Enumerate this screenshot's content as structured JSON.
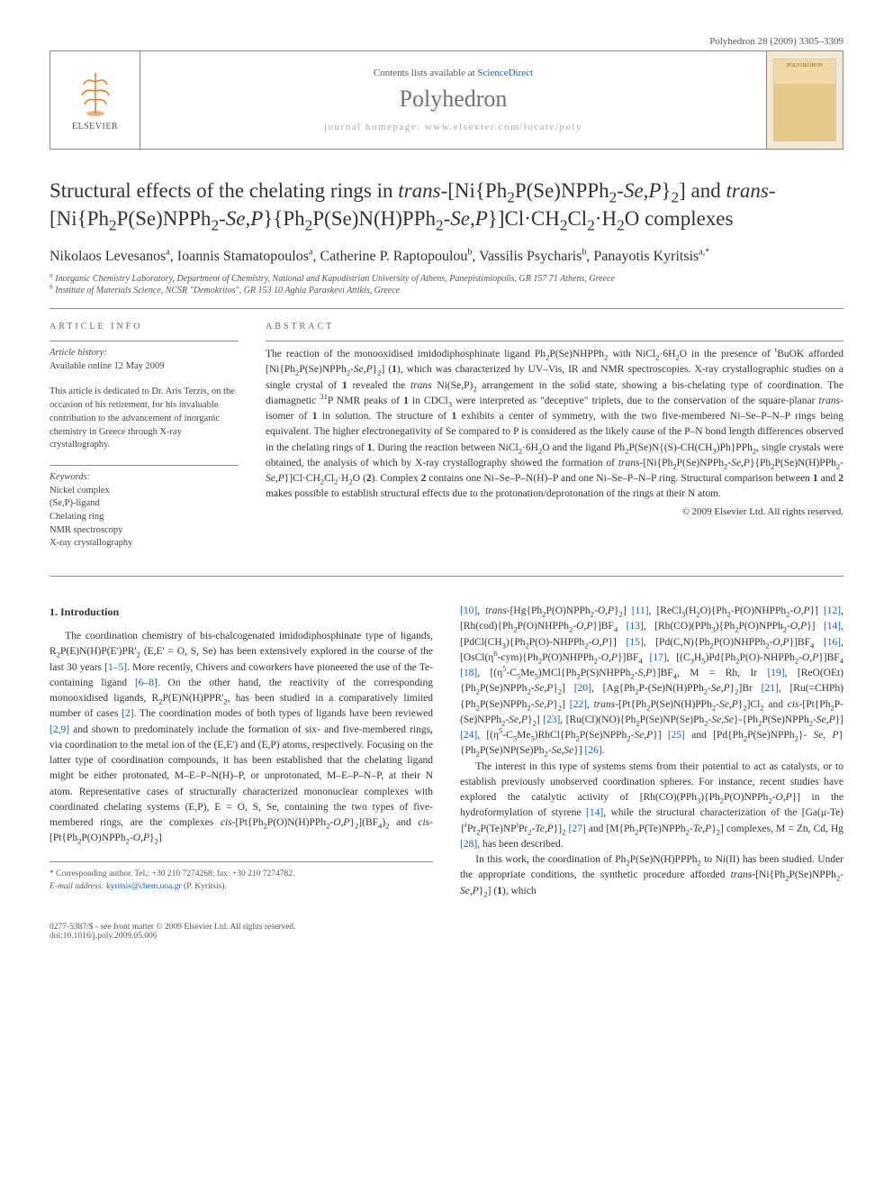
{
  "header": {
    "journal_ref": "Polyhedron 28 (2009) 3305–3309",
    "contents_prefix": "Contents lists available at ",
    "contents_link": "ScienceDirect",
    "journal_name": "Polyhedron",
    "homepage_prefix": "journal homepage: ",
    "homepage_url": "www.elsevier.com/locate/poly",
    "elsevier_label": "ELSEVIER"
  },
  "title_html": "Structural effects of the chelating rings in <em>trans</em>-[Ni{Ph<sub>2</sub>P(Se)NPPh<sub>2</sub>-<em>Se,P</em>}<sub>2</sub>] and <em>trans</em>-[Ni{Ph<sub>2</sub>P(Se)NPPh<sub>2</sub>-<em>Se,P</em>}{Ph<sub>2</sub>P(Se)N(H)PPh<sub>2</sub>-<em>Se,P</em>}]Cl·CH<sub>2</sub>Cl<sub>2</sub>·H<sub>2</sub>O complexes",
  "authors_html": "Nikolaos Levesanos<sup>a</sup>, Ioannis Stamatopoulos<sup>a</sup>, Catherine P. Raptopoulou<sup>b</sup>, Vassilis Psycharis<sup>b</sup>, Panayotis Kyritsis<sup>a,*</sup>",
  "affiliations": {
    "a": "Inorganic Chemistry Laboratory, Department of Chemistry, National and Kapodistrian University of Athens, Panepistimiopolis, GR 157 71 Athens, Greece",
    "b": "Institute of Materials Science, NCSR \"Demokritos\", GR 153 10 Aghia Paraskevi Attikis, Greece"
  },
  "article_info": {
    "heading": "ARTICLE INFO",
    "history_label": "Article history:",
    "history_line": "Available online 12 May 2009",
    "dedication": "This article is dedicated to Dr. Aris Terzis, on the occasion of his retirement, for his invaluable contribution to the advancement of inorganic chemistry in Greece through X-ray crystallography.",
    "keywords_label": "Keywords:",
    "keywords": [
      "Nickel complex",
      "(Se,P)-ligand",
      "Chelating ring",
      "NMR spectroscopy",
      "X-ray crystallography"
    ]
  },
  "abstract": {
    "heading": "ABSTRACT",
    "text_html": "The reaction of the monooxidised imidodiphosphinate ligand Ph<sub>2</sub>P(Se)NHPPh<sub>2</sub> with NiCl<sub>2</sub>·6H<sub>2</sub>O in the presence of <sup>t</sup>BuOK afforded [Ni{Ph<sub>2</sub>P(Se)NPPh<sub>2</sub>-<em>Se,P</em>}<sub>2</sub>] (<b>1</b>), which was characterized by UV–Vis, IR and NMR spectroscopies. X-ray crystallographic studies on a single crystal of <b>1</b> revealed the <em>trans</em> Ni(Se,P)<sub>2</sub> arrangement in the solid state, showing a bis-chelating type of coordination. The diamagnetic <sup>31</sup>P NMR peaks of <b>1</b> in CDCl<sub>3</sub> were interpreted as \"deceptive\" triplets, due to the conservation of the square-planar <em>trans</em>-isomer of <b>1</b> in solution. The structure of <b>1</b> exhibits a center of symmetry, with the two five-membered Ni–Se–P–N–P rings being equivalent. The higher electronegativity of Se compared to P is considered as the likely cause of the P–N bond length differences observed in the chelating rings of <b>1</b>. During the reaction between NiCl<sub>2</sub>·6H<sub>2</sub>O and the ligand Ph<sub>2</sub>P(Se)N{(S)-CH(CH<sub>3</sub>)Ph}PPh<sub>2</sub>, single crystals were obtained, the analysis of which by X-ray crystallography showed the formation of <em>trans</em>-[Ni{Ph<sub>2</sub>P(Se)NPPh<sub>2</sub>-<em>Se,P</em>}{Ph<sub>2</sub>P(Se)N(H)PPh<sub>2</sub>-<em>Se,P</em>}]Cl·CH<sub>2</sub>Cl<sub>2</sub>·H<sub>2</sub>O (<b>2</b>). Complex <b>2</b> contains one Ni–Se–P–N(H)–P and one Ni–Se–P–N–P ring. Structural comparison between <b>1</b> and <b>2</b> makes possible to establish structural effects due to the protonation/deprotonation of the rings at their N atom.",
    "copyright": "© 2009 Elsevier Ltd. All rights reserved."
  },
  "body": {
    "section_heading": "1. Introduction",
    "col1_html": "The coordination chemistry of bis-chalcogenated imidodiphosphinate type of ligands, R<sub>2</sub>P(E)N(H)P(E')PR'<sub>2</sub> (E,E' = O, S, Se) has been extensively explored in the course of the last 30 years <span class=\"ref\">[1–5]</span>. More recently, Chivers and coworkers have pioneered the use of the Te-containing ligand <span class=\"ref\">[6–8]</span>. On the other hand, the reactivity of the corresponding monooxidised ligands, R<sub>2</sub>P(E)N(H)PPR'<sub>2</sub>, has been studied in a comparatively limited number of cases <span class=\"ref\">[2]</span>. The coordination modes of both types of ligands have been reviewed <span class=\"ref\">[2,9]</span> and shown to predominately include the formation of six- and five-membered rings, via coordination to the metal ion of the (E,E') and (E,P) atoms, respectively. Focusing on the latter type of coordination compounds, it has been established that the chelating ligand might be either protonated, M–E–P–N(H)–P, or unprotonated, M–E–P–N–P, at their N atom. Representative cases of structurally characterized mononuclear complexes with coordinated chelating systems (E,P), E = O, S, Se, containing the two types of five-membered rings, are the complexes <em>cis</em>-[Pt{Ph<sub>2</sub>P(O)N(H)PPh<sub>2</sub>-<em>O,P</em>}<sub>2</sub>](BF<sub>4</sub>)<sub>2</sub> and <em>cis</em>-[Pt{Ph<sub>2</sub>P(O)NPPh<sub>2</sub>-<em>O,P</em>}<sub>2</sub>]",
    "col2_html": "<span class=\"ref\">[10]</span>, <em>trans</em>-[Hg{Ph<sub>2</sub>P(O)NPPh<sub>2</sub>-<em>O,P</em>}<sub>2</sub>] <span class=\"ref\">[11]</span>, [ReCl<sub>3</sub>(H<sub>2</sub>O){Ph<sub>2</sub>-P(O)NHPPh<sub>2</sub>-<em>O,P</em>}] <span class=\"ref\">[12]</span>, [Rh(cod){Ph<sub>2</sub>P(O)NHPPh<sub>2</sub>-<em>O,P</em>}]BF<sub>4</sub> <span class=\"ref\">[13]</span>, [Rh(CO)(PPh<sub>3</sub>){Ph<sub>2</sub>P(O)NPPh<sub>2</sub>-<em>O,P</em>}] <span class=\"ref\">[14]</span>, [PdCl(CH<sub>3</sub>){Ph<sub>2</sub>P(O)-NHPPh<sub>2</sub>-<em>O,P</em>}] <span class=\"ref\">[15]</span>, [Pd(C,N){Ph<sub>2</sub>P(O)NHPPh<sub>2</sub>-<em>O,P</em>}]BF<sub>4</sub> <span class=\"ref\">[16]</span>, [OsCl(η<sup>6</sup>-cym){Ph<sub>2</sub>P(O)NHPPh<sub>2</sub>-<em>O,P</em>}]BF<sub>4</sub> <span class=\"ref\">[17]</span>, [(C<sub>3</sub>H<sub>5</sub>)Pd{Ph<sub>2</sub>P(O)-NHPPh<sub>2</sub>-<em>O,P</em>}]BF<sub>4</sub> <span class=\"ref\">[18]</span>, [(η<sup>5</sup>-C<sub>5</sub>Me<sub>5</sub>)MCl{Ph<sub>2</sub>P(S)NHPPh<sub>2</sub>-<em>S,P</em>}]BF<sub>4</sub>, M = Rh, Ir <span class=\"ref\">[19]</span>, [ReO(OEt){Ph<sub>2</sub>P(Se)NPPh<sub>2</sub>-<em>Se,P</em>}<sub>2</sub>] <span class=\"ref\">[20]</span>, [Ag{Ph<sub>2</sub>P-(Se)N(H)PPh<sub>2</sub>-<em>Se,P</em>}<sub>2</sub>]Br <span class=\"ref\">[21]</span>, [Ru(=CHPh){Ph<sub>2</sub>P(Se)NPPh<sub>2</sub>-<em>Se,P</em>}<sub>2</sub>] <span class=\"ref\">[22]</span>, <em>trans</em>-[Pt{Ph<sub>2</sub>P(Se)N(H)PPh<sub>2</sub>-<em>Se,P</em>}<sub>2</sub>]Cl<sub>2</sub> and <em>cis</em>-[Pt{Ph<sub>2</sub>P-(Se)NPPh<sub>2</sub>-<em>Se,P</em>}<sub>2</sub>] <span class=\"ref\">[23]</span>, [Ru(Cl)(NO){Ph<sub>2</sub>P(Se)NP(Se)Ph<sub>2</sub>-<em>Se,Se</em>}-{Ph<sub>2</sub>P(Se)NPPh<sub>2</sub>-<em>Se,P</em>}] <span class=\"ref\">[24]</span>, [(η<sup>5</sup>-C<sub>5</sub>Me<sub>5</sub>)RhCl{Ph<sub>2</sub>P(Se)NPPh<sub>2</sub>-<em>Se,P</em>}] <span class=\"ref\">[25]</span> and [Pd{Ph<sub>2</sub>P(Se)NPPh<sub>2</sub>}- <em>Se, P</em>}{Ph<sub>2</sub>P(Se)NP(Se)Ph<sub>2</sub>-<em>Se,Se</em>}] <span class=\"ref\">[26]</span>.",
    "para2_html": "The interest in this type of systems stems from their potential to act as catalysts, or to establish previously unobserved coordination spheres. For instance, recent studies have explored the catalytic activity of [Rh(CO)(PPh<sub>3</sub>){Ph<sub>2</sub>P(O)NPPh<sub>2</sub>-<em>O,P</em>}] in the hydroformylation of styrene <span class=\"ref\">[14]</span>, while the structural characterization of the [Ga(μ-Te){<sup>i</sup>Pr<sub>2</sub>P(Te)NP<sup>i</sup>Pr<sub>2</sub>-<em>Te,P</em>}]<sub>2</sub> <span class=\"ref\">[27]</span> and [M{Ph<sub>2</sub>P(Te)NPPh<sub>2</sub>-<em>Te,P</em>}<sub>2</sub>] complexes, M = Zn, Cd, Hg <span class=\"ref\">[28]</span>, has been described.",
    "para3_html": "In this work, the coordination of Ph<sub>2</sub>P(Se)N(H)PPPh<sub>2</sub> to Ni(II) has been studied. Under the appropriate conditions, the synthetic procedure afforded <em>trans</em>-[Ni{Ph<sub>2</sub>P(Se)NPPh<sub>2</sub>-<em>Se,P</em>}<sub>2</sub>] (<b>1</b>), which"
  },
  "footnote": {
    "corresponding": "* Corresponding author. Tel.: +30 210 7274268; fax: +30 210 7274782.",
    "email_label": "E-mail address:",
    "email": "kyritsis@chem.uoa.gr",
    "email_suffix": "(P. Kyritsis)."
  },
  "footer": {
    "left_line1": "0277-5387/$ - see front matter © 2009 Elsevier Ltd. All rights reserved.",
    "left_line2": "doi:10.1016/j.poly.2009.05.006"
  },
  "colors": {
    "link": "#1a5fb4",
    "text": "#333333",
    "muted": "#555555",
    "border": "#888888",
    "journal_gray": "#6b7280"
  }
}
